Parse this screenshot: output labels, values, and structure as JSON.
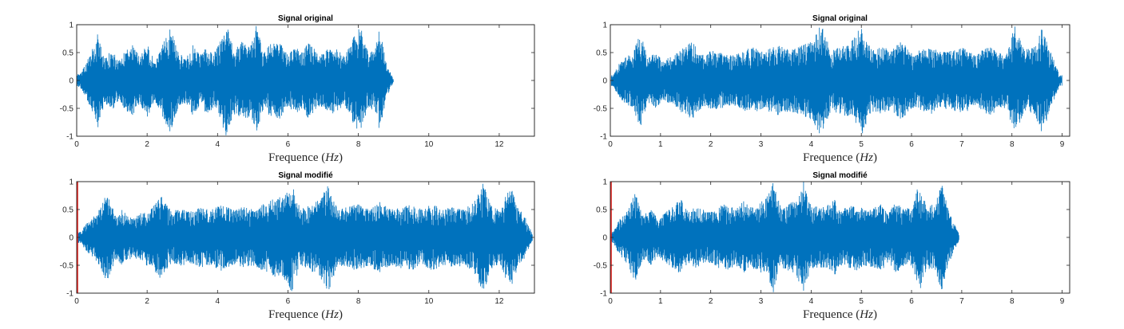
{
  "chart_data": [
    {
      "type": "line",
      "id": "top-left",
      "title": "Signal original",
      "xlabel_prefix": "Frequence ",
      "xlabel_unit": "Hz",
      "xlim": [
        0,
        13
      ],
      "ylim": [
        -1,
        1
      ],
      "xticks": [
        0,
        2,
        4,
        6,
        8,
        10,
        12
      ],
      "yticks": [
        1,
        0.5,
        0,
        -0.5,
        -1
      ],
      "ytick_labels": [
        "1",
        "0.5",
        "0",
        "-0.5",
        "-1"
      ],
      "series_color": "#0072BD",
      "signal_end": 9.0,
      "red_marker": false,
      "envelope": [
        [
          0.1,
          0.12
        ],
        [
          0.3,
          0.35
        ],
        [
          0.6,
          0.85
        ],
        [
          0.8,
          0.4
        ],
        [
          1.0,
          0.55
        ],
        [
          1.2,
          0.35
        ],
        [
          1.35,
          0.5
        ],
        [
          1.6,
          0.65
        ],
        [
          1.8,
          0.4
        ],
        [
          2.0,
          0.7
        ],
        [
          2.2,
          0.35
        ],
        [
          2.4,
          0.6
        ],
        [
          2.65,
          0.95
        ],
        [
          2.9,
          0.5
        ],
        [
          3.1,
          0.4
        ],
        [
          3.3,
          0.65
        ],
        [
          3.5,
          0.45
        ],
        [
          3.7,
          0.6
        ],
        [
          3.9,
          0.5
        ],
        [
          4.1,
          0.75
        ],
        [
          4.25,
          1.0
        ],
        [
          4.45,
          0.6
        ],
        [
          4.7,
          0.7
        ],
        [
          4.95,
          0.65
        ],
        [
          5.1,
          1.0
        ],
        [
          5.3,
          0.5
        ],
        [
          5.5,
          0.65
        ],
        [
          5.75,
          0.7
        ],
        [
          6.0,
          0.45
        ],
        [
          6.2,
          0.6
        ],
        [
          6.4,
          0.5
        ],
        [
          6.6,
          0.7
        ],
        [
          6.9,
          0.45
        ],
        [
          7.1,
          0.55
        ],
        [
          7.3,
          0.6
        ],
        [
          7.6,
          0.45
        ],
        [
          7.8,
          0.7
        ],
        [
          8.05,
          1.0
        ],
        [
          8.25,
          0.55
        ],
        [
          8.45,
          0.5
        ],
        [
          8.6,
          0.95
        ],
        [
          8.8,
          0.3
        ],
        [
          9.0,
          0.02
        ]
      ]
    },
    {
      "type": "line",
      "id": "top-right",
      "title": "Signal original",
      "xlabel_prefix": "Frequence ",
      "xlabel_unit": "Hz",
      "xlim": [
        0,
        9.15
      ],
      "ylim": [
        -1,
        1
      ],
      "xticks": [
        0,
        1,
        2,
        3,
        4,
        5,
        6,
        7,
        8,
        9
      ],
      "yticks": [
        1,
        0.5,
        0,
        -0.5,
        -1
      ],
      "ytick_labels": [
        "1",
        "0.5",
        "0",
        "-0.5",
        "-1"
      ],
      "series_color": "#0072BD",
      "signal_end": 9.0,
      "red_marker": false,
      "envelope": [
        [
          0.05,
          0.1
        ],
        [
          0.2,
          0.35
        ],
        [
          0.45,
          0.5
        ],
        [
          0.6,
          0.85
        ],
        [
          0.75,
          0.4
        ],
        [
          0.9,
          0.5
        ],
        [
          1.05,
          0.35
        ],
        [
          1.25,
          0.45
        ],
        [
          1.45,
          0.6
        ],
        [
          1.65,
          0.7
        ],
        [
          1.85,
          0.45
        ],
        [
          2.0,
          0.55
        ],
        [
          2.2,
          0.5
        ],
        [
          2.45,
          0.45
        ],
        [
          2.65,
          0.55
        ],
        [
          2.85,
          0.6
        ],
        [
          3.05,
          0.5
        ],
        [
          3.3,
          0.65
        ],
        [
          3.55,
          0.55
        ],
        [
          3.75,
          0.6
        ],
        [
          4.0,
          0.7
        ],
        [
          4.2,
          1.0
        ],
        [
          4.4,
          0.55
        ],
        [
          4.6,
          0.6
        ],
        [
          4.8,
          0.7
        ],
        [
          5.0,
          1.0
        ],
        [
          5.2,
          0.55
        ],
        [
          5.4,
          0.6
        ],
        [
          5.6,
          0.55
        ],
        [
          5.8,
          0.7
        ],
        [
          6.0,
          0.5
        ],
        [
          6.2,
          0.55
        ],
        [
          6.4,
          0.6
        ],
        [
          6.6,
          0.5
        ],
        [
          6.85,
          0.55
        ],
        [
          7.05,
          0.6
        ],
        [
          7.3,
          0.45
        ],
        [
          7.5,
          0.65
        ],
        [
          7.7,
          0.55
        ],
        [
          7.9,
          0.5
        ],
        [
          8.05,
          1.0
        ],
        [
          8.25,
          0.55
        ],
        [
          8.45,
          0.6
        ],
        [
          8.6,
          0.95
        ],
        [
          8.8,
          0.45
        ],
        [
          8.95,
          0.1
        ]
      ]
    },
    {
      "type": "line",
      "id": "bottom-left",
      "title": "Signal modifié",
      "xlabel_prefix": "Frequence ",
      "xlabel_unit": "Hz",
      "xlim": [
        0,
        13
      ],
      "ylim": [
        -1,
        1
      ],
      "xticks": [
        0,
        2,
        4,
        6,
        8,
        10,
        12
      ],
      "yticks": [
        1,
        0.5,
        0,
        -0.5,
        -1
      ],
      "ytick_labels": [
        "1",
        "0.5",
        "0",
        "-0.5",
        "-1"
      ],
      "series_color": "#0072BD",
      "marker_color": "#E0201B",
      "signal_end": 12.95,
      "red_marker": true,
      "envelope": [
        [
          0.1,
          0.1
        ],
        [
          0.35,
          0.3
        ],
        [
          0.6,
          0.45
        ],
        [
          0.85,
          0.8
        ],
        [
          1.1,
          0.4
        ],
        [
          1.3,
          0.5
        ],
        [
          1.6,
          0.35
        ],
        [
          1.85,
          0.45
        ],
        [
          2.1,
          0.55
        ],
        [
          2.4,
          0.75
        ],
        [
          2.7,
          0.45
        ],
        [
          2.9,
          0.55
        ],
        [
          3.2,
          0.45
        ],
        [
          3.5,
          0.55
        ],
        [
          3.8,
          0.5
        ],
        [
          4.1,
          0.6
        ],
        [
          4.4,
          0.5
        ],
        [
          4.7,
          0.55
        ],
        [
          5.0,
          0.5
        ],
        [
          5.3,
          0.6
        ],
        [
          5.6,
          0.7
        ],
        [
          5.9,
          0.75
        ],
        [
          6.1,
          1.0
        ],
        [
          6.35,
          0.5
        ],
        [
          6.6,
          0.6
        ],
        [
          6.9,
          0.7
        ],
        [
          7.15,
          1.0
        ],
        [
          7.4,
          0.5
        ],
        [
          7.7,
          0.55
        ],
        [
          8.0,
          0.6
        ],
        [
          8.3,
          0.5
        ],
        [
          8.6,
          0.65
        ],
        [
          8.9,
          0.5
        ],
        [
          9.2,
          0.55
        ],
        [
          9.5,
          0.6
        ],
        [
          9.8,
          0.5
        ],
        [
          10.1,
          0.6
        ],
        [
          10.4,
          0.5
        ],
        [
          10.7,
          0.55
        ],
        [
          11.0,
          0.5
        ],
        [
          11.3,
          0.65
        ],
        [
          11.55,
          1.0
        ],
        [
          11.8,
          0.55
        ],
        [
          12.05,
          0.5
        ],
        [
          12.3,
          0.95
        ],
        [
          12.5,
          0.6
        ],
        [
          12.75,
          0.35
        ],
        [
          12.95,
          0.05
        ]
      ]
    },
    {
      "type": "line",
      "id": "bottom-right",
      "title": "Signal modifié",
      "xlabel_prefix": "Frequence ",
      "xlabel_unit": "Hz",
      "xlim": [
        0,
        9.15
      ],
      "ylim": [
        -1,
        1
      ],
      "xticks": [
        0,
        1,
        2,
        3,
        4,
        5,
        6,
        7,
        8,
        9
      ],
      "yticks": [
        1,
        0.5,
        0,
        -0.5,
        -1
      ],
      "ytick_labels": [
        "1",
        "0.5",
        "0",
        "-0.5",
        "-1"
      ],
      "series_color": "#0072BD",
      "marker_color": "#E0201B",
      "signal_end": 6.95,
      "red_marker": true,
      "envelope": [
        [
          0.05,
          0.1
        ],
        [
          0.2,
          0.35
        ],
        [
          0.35,
          0.5
        ],
        [
          0.5,
          0.85
        ],
        [
          0.65,
          0.4
        ],
        [
          0.8,
          0.5
        ],
        [
          0.95,
          0.35
        ],
        [
          1.1,
          0.45
        ],
        [
          1.25,
          0.55
        ],
        [
          1.4,
          0.7
        ],
        [
          1.55,
          0.45
        ],
        [
          1.7,
          0.55
        ],
        [
          1.85,
          0.5
        ],
        [
          2.0,
          0.45
        ],
        [
          2.15,
          0.55
        ],
        [
          2.3,
          0.6
        ],
        [
          2.5,
          0.5
        ],
        [
          2.65,
          0.65
        ],
        [
          2.8,
          0.55
        ],
        [
          2.95,
          0.6
        ],
        [
          3.1,
          0.7
        ],
        [
          3.25,
          1.0
        ],
        [
          3.4,
          0.55
        ],
        [
          3.55,
          0.6
        ],
        [
          3.7,
          0.7
        ],
        [
          3.85,
          1.0
        ],
        [
          4.0,
          0.55
        ],
        [
          4.15,
          0.6
        ],
        [
          4.3,
          0.55
        ],
        [
          4.45,
          0.7
        ],
        [
          4.6,
          0.5
        ],
        [
          4.75,
          0.55
        ],
        [
          4.9,
          0.6
        ],
        [
          5.05,
          0.5
        ],
        [
          5.25,
          0.55
        ],
        [
          5.4,
          0.6
        ],
        [
          5.55,
          0.45
        ],
        [
          5.7,
          0.65
        ],
        [
          5.85,
          0.55
        ],
        [
          6.0,
          0.5
        ],
        [
          6.15,
          1.0
        ],
        [
          6.3,
          0.55
        ],
        [
          6.45,
          0.6
        ],
        [
          6.6,
          0.95
        ],
        [
          6.75,
          0.45
        ],
        [
          6.95,
          0.05
        ]
      ]
    }
  ]
}
